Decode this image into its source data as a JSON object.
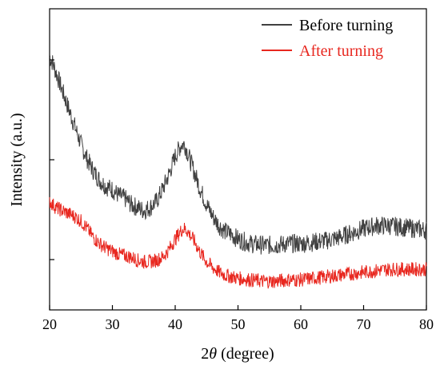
{
  "chart_data": {
    "type": "line",
    "xlabel_prefix": "2",
    "xlabel_symbol": "θ",
    "xlabel_suffix": " (degree)",
    "ylabel": "Intensity (a.u.)",
    "xlim": [
      20,
      80
    ],
    "ylim": [
      0,
      100
    ],
    "x_ticks": [
      "20",
      "30",
      "40",
      "50",
      "60",
      "70",
      "80"
    ],
    "y_ticks_labeled": false,
    "grid": false,
    "legend_position": "top-right",
    "series": [
      {
        "name": "Before turning",
        "color": "#404040",
        "x": [
          20,
          20.5,
          21,
          22,
          23,
          24,
          25,
          26,
          27,
          28,
          29,
          30,
          31,
          32,
          33,
          34,
          35,
          36,
          37,
          38,
          39,
          40,
          41,
          41.5,
          42,
          43,
          44,
          45,
          46,
          47,
          48,
          49,
          50,
          52,
          54,
          56,
          58,
          60,
          62,
          64,
          66,
          68,
          70,
          72,
          74,
          76,
          78,
          80
        ],
        "values": [
          84,
          82,
          79,
          73,
          67,
          61,
          55,
          50,
          46,
          43,
          41,
          40,
          38,
          37,
          35,
          34,
          33,
          34,
          36,
          40,
          45,
          51,
          55,
          55,
          52,
          46,
          40,
          35,
          31,
          28,
          26,
          25,
          23.5,
          22,
          21.5,
          21.5,
          22,
          22,
          22.5,
          23,
          24,
          25.5,
          27,
          28,
          28,
          27.5,
          27,
          26.5
        ]
      },
      {
        "name": "After turning",
        "color": "#e8271f",
        "x": [
          20,
          21,
          22,
          23,
          24,
          25,
          26,
          27,
          28,
          29,
          30,
          31,
          32,
          33,
          34,
          35,
          36,
          37,
          38,
          39,
          40,
          41,
          41.5,
          42,
          43,
          44,
          45,
          46,
          47,
          48,
          49,
          50,
          52,
          54,
          56,
          58,
          60,
          62,
          64,
          66,
          68,
          70,
          72,
          74,
          76,
          78,
          80
        ],
        "values": [
          36,
          34,
          33,
          32,
          31,
          29.5,
          27,
          24,
          22,
          20.5,
          19.5,
          18.5,
          18,
          17.5,
          16.5,
          16,
          16,
          16.5,
          17.5,
          20,
          23.5,
          26.5,
          27,
          26,
          23,
          19,
          16,
          14,
          12.5,
          11.5,
          11,
          10.5,
          10,
          9.5,
          9.5,
          10,
          10,
          10.5,
          11,
          11.5,
          12,
          12.5,
          13,
          13.5,
          13.5,
          13.5,
          13.5
        ]
      }
    ]
  }
}
